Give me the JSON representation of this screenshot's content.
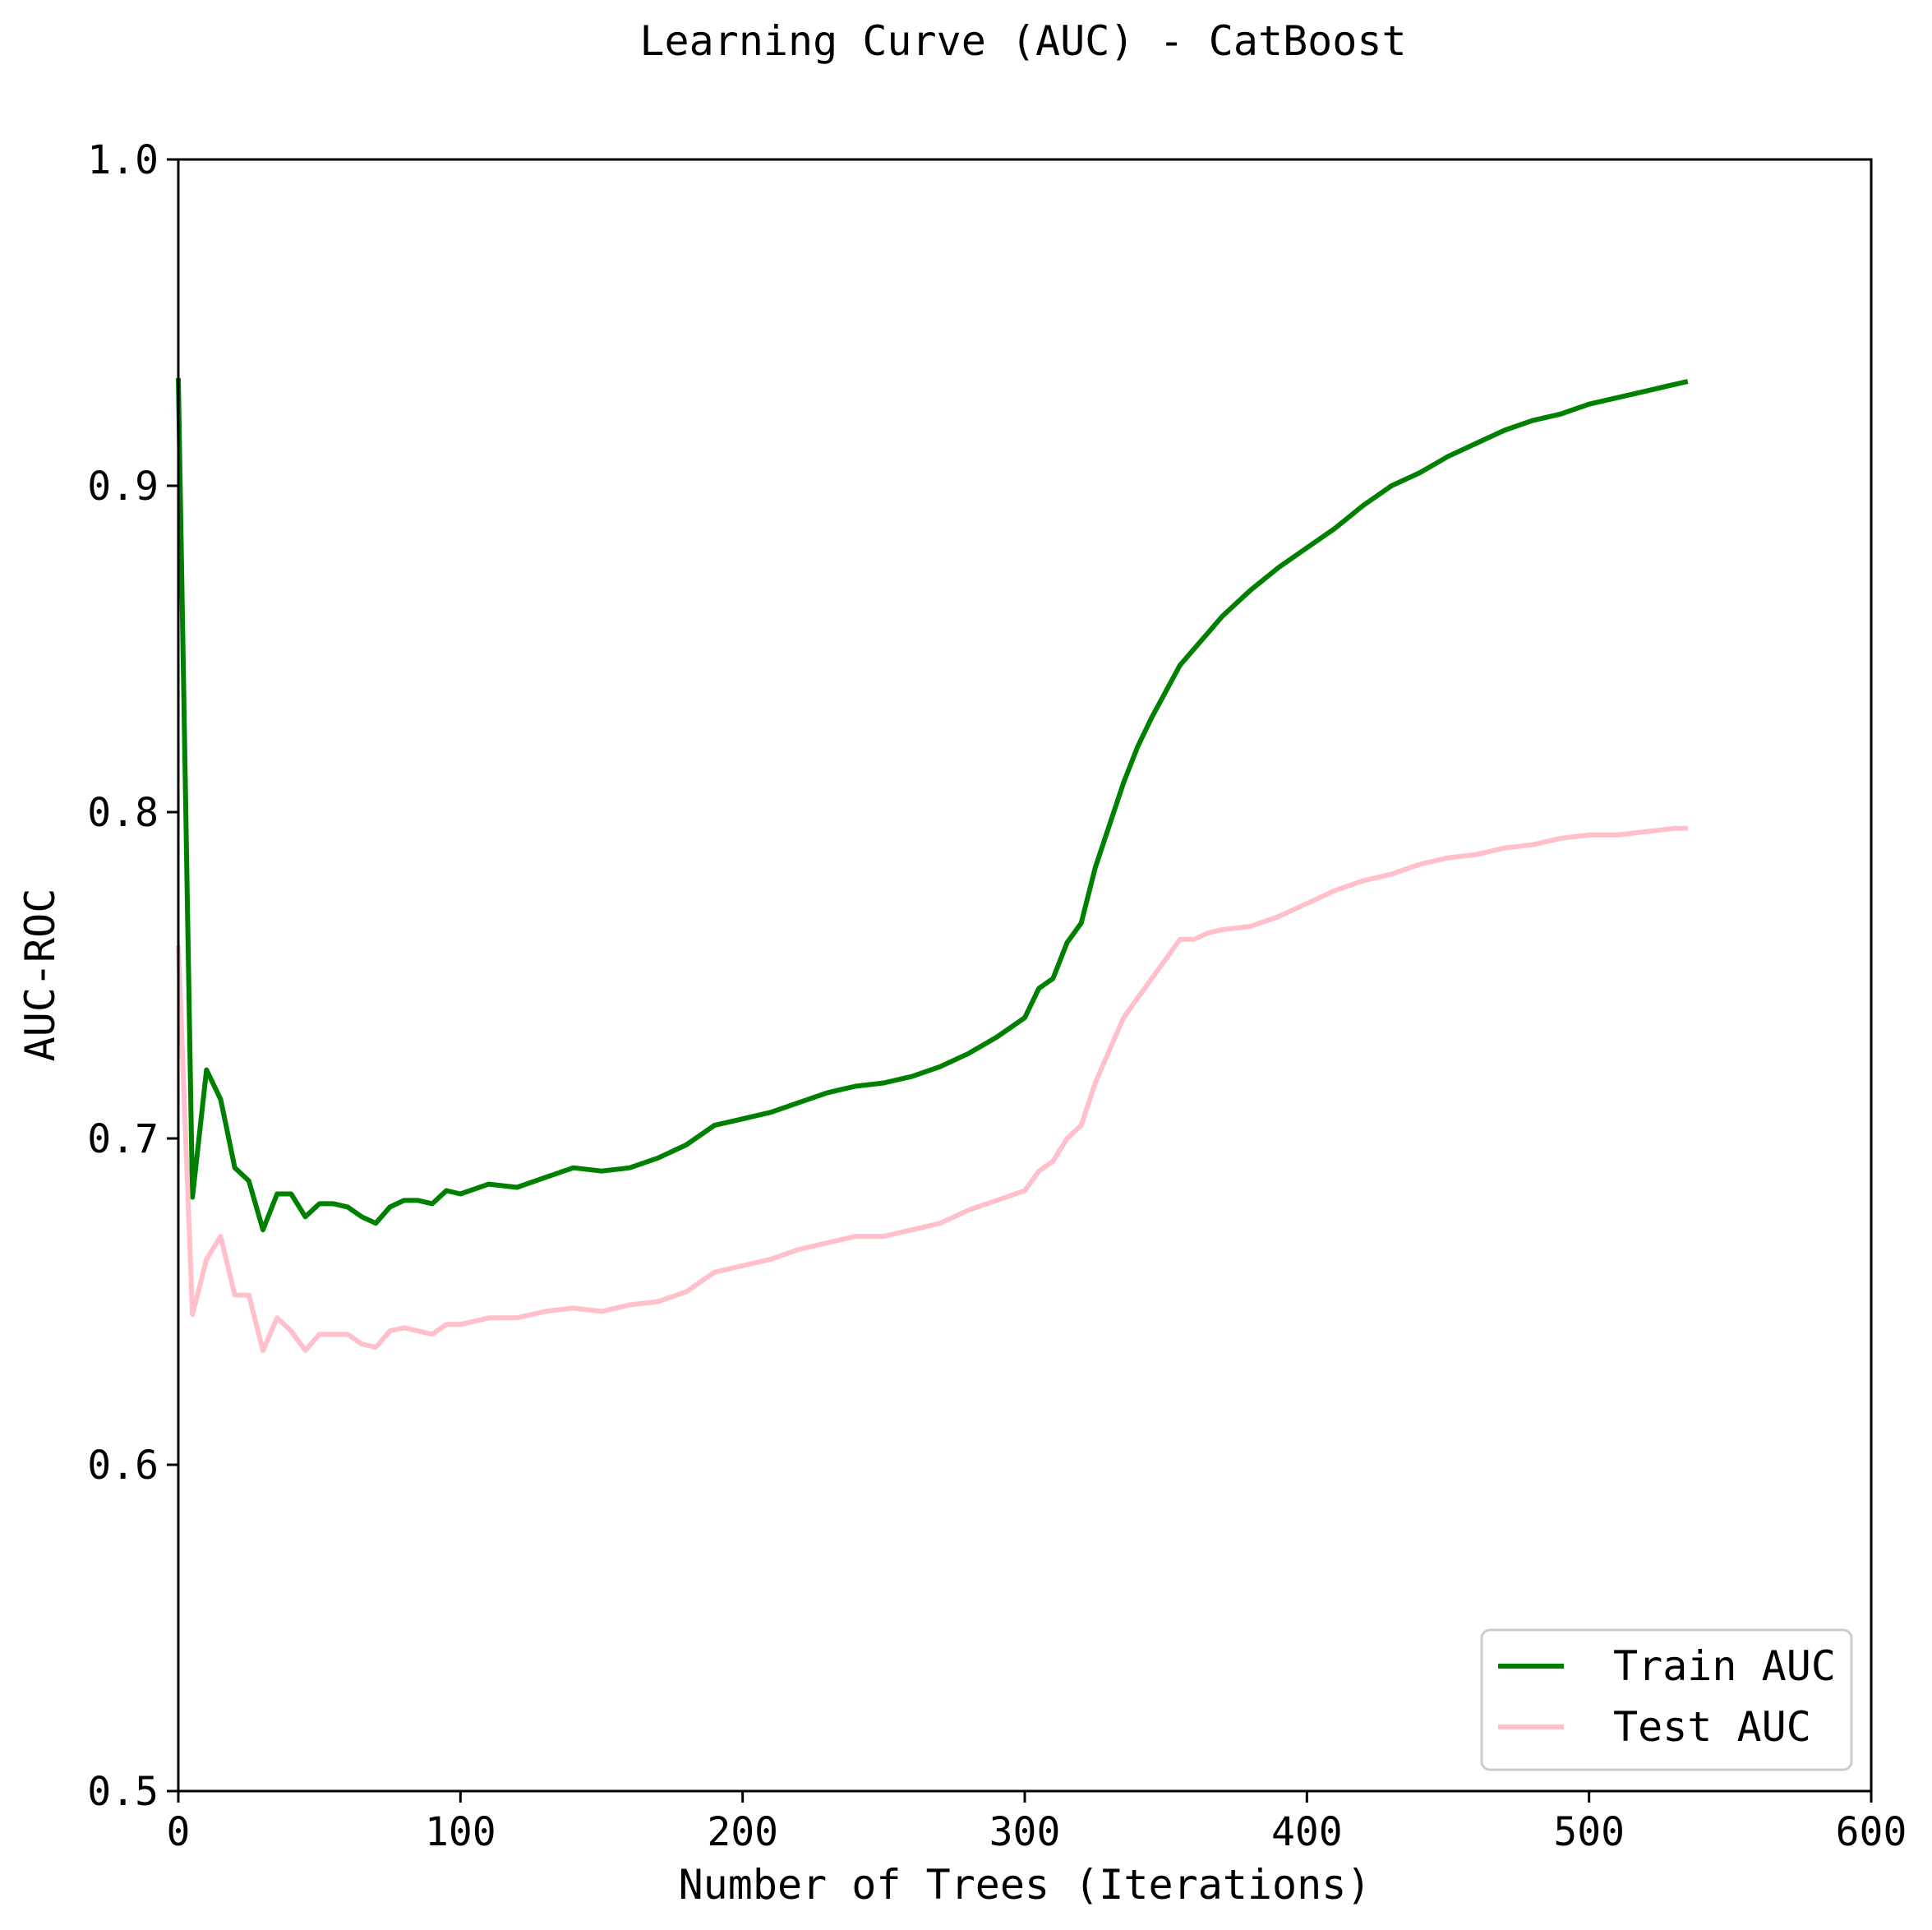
{
  "chart_data": {
    "type": "line",
    "title": "Learning Curve (AUC) - CatBoost",
    "xlabel": "Number of Trees (Iterations)",
    "ylabel": "AUC-ROC",
    "xlim": [
      0,
      600
    ],
    "ylim": [
      0.5,
      1.0
    ],
    "xticks": [
      "0",
      "100",
      "200",
      "300",
      "400",
      "500",
      "600"
    ],
    "yticks": [
      "0.5",
      "0.6",
      "0.7",
      "0.8",
      "0.9",
      "1.0"
    ],
    "grid": false,
    "legend_position": "lower-right",
    "series": [
      {
        "name": "Train AUC",
        "color": "#008000",
        "x": [
          0,
          5,
          10,
          15,
          20,
          25,
          30,
          35,
          40,
          45,
          50,
          55,
          60,
          65,
          70,
          75,
          80,
          85,
          90,
          95,
          100,
          110,
          120,
          130,
          140,
          150,
          160,
          170,
          180,
          190,
          200,
          210,
          220,
          230,
          240,
          250,
          260,
          270,
          280,
          290,
          300,
          305,
          310,
          315,
          320,
          325,
          330,
          335,
          340,
          345,
          350,
          355,
          360,
          365,
          370,
          380,
          390,
          400,
          410,
          420,
          430,
          440,
          450,
          460,
          470,
          480,
          490,
          500,
          510,
          520,
          530,
          535
        ],
        "y": [
          0.933,
          0.682,
          0.721,
          0.712,
          0.691,
          0.687,
          0.672,
          0.683,
          0.683,
          0.676,
          0.68,
          0.68,
          0.679,
          0.676,
          0.674,
          0.679,
          0.681,
          0.681,
          0.68,
          0.684,
          0.683,
          0.686,
          0.685,
          0.688,
          0.691,
          0.69,
          0.691,
          0.694,
          0.698,
          0.704,
          0.706,
          0.708,
          0.711,
          0.714,
          0.716,
          0.717,
          0.719,
          0.722,
          0.726,
          0.731,
          0.737,
          0.746,
          0.749,
          0.76,
          0.766,
          0.783,
          0.796,
          0.809,
          0.82,
          0.829,
          0.837,
          0.845,
          0.85,
          0.855,
          0.86,
          0.868,
          0.875,
          0.881,
          0.887,
          0.894,
          0.9,
          0.904,
          0.909,
          0.913,
          0.917,
          0.92,
          0.922,
          0.925,
          0.927,
          0.929,
          0.931,
          0.932
        ]
      },
      {
        "name": "Test AUC",
        "color": "#ffc0cb",
        "x": [
          0,
          5,
          10,
          15,
          20,
          25,
          30,
          35,
          40,
          45,
          50,
          55,
          60,
          65,
          70,
          75,
          80,
          85,
          90,
          95,
          100,
          110,
          120,
          130,
          140,
          150,
          160,
          170,
          180,
          190,
          200,
          210,
          220,
          230,
          240,
          250,
          260,
          270,
          280,
          290,
          300,
          305,
          310,
          315,
          320,
          325,
          330,
          335,
          340,
          345,
          350,
          355,
          360,
          365,
          370,
          380,
          390,
          400,
          410,
          420,
          430,
          440,
          450,
          460,
          470,
          480,
          490,
          500,
          510,
          520,
          530,
          535
        ],
        "y": [
          0.759,
          0.646,
          0.663,
          0.67,
          0.652,
          0.652,
          0.635,
          0.645,
          0.641,
          0.635,
          0.64,
          0.64,
          0.64,
          0.637,
          0.636,
          0.641,
          0.642,
          0.641,
          0.64,
          0.643,
          0.643,
          0.645,
          0.645,
          0.647,
          0.648,
          0.647,
          0.649,
          0.65,
          0.653,
          0.659,
          0.661,
          0.663,
          0.666,
          0.668,
          0.67,
          0.67,
          0.672,
          0.674,
          0.678,
          0.681,
          0.684,
          0.69,
          0.693,
          0.7,
          0.704,
          0.717,
          0.727,
          0.737,
          0.743,
          0.749,
          0.755,
          0.761,
          0.761,
          0.763,
          0.764,
          0.765,
          0.768,
          0.772,
          0.776,
          0.779,
          0.781,
          0.784,
          0.786,
          0.787,
          0.789,
          0.79,
          0.792,
          0.793,
          0.793,
          0.794,
          0.795,
          0.795
        ]
      }
    ]
  }
}
